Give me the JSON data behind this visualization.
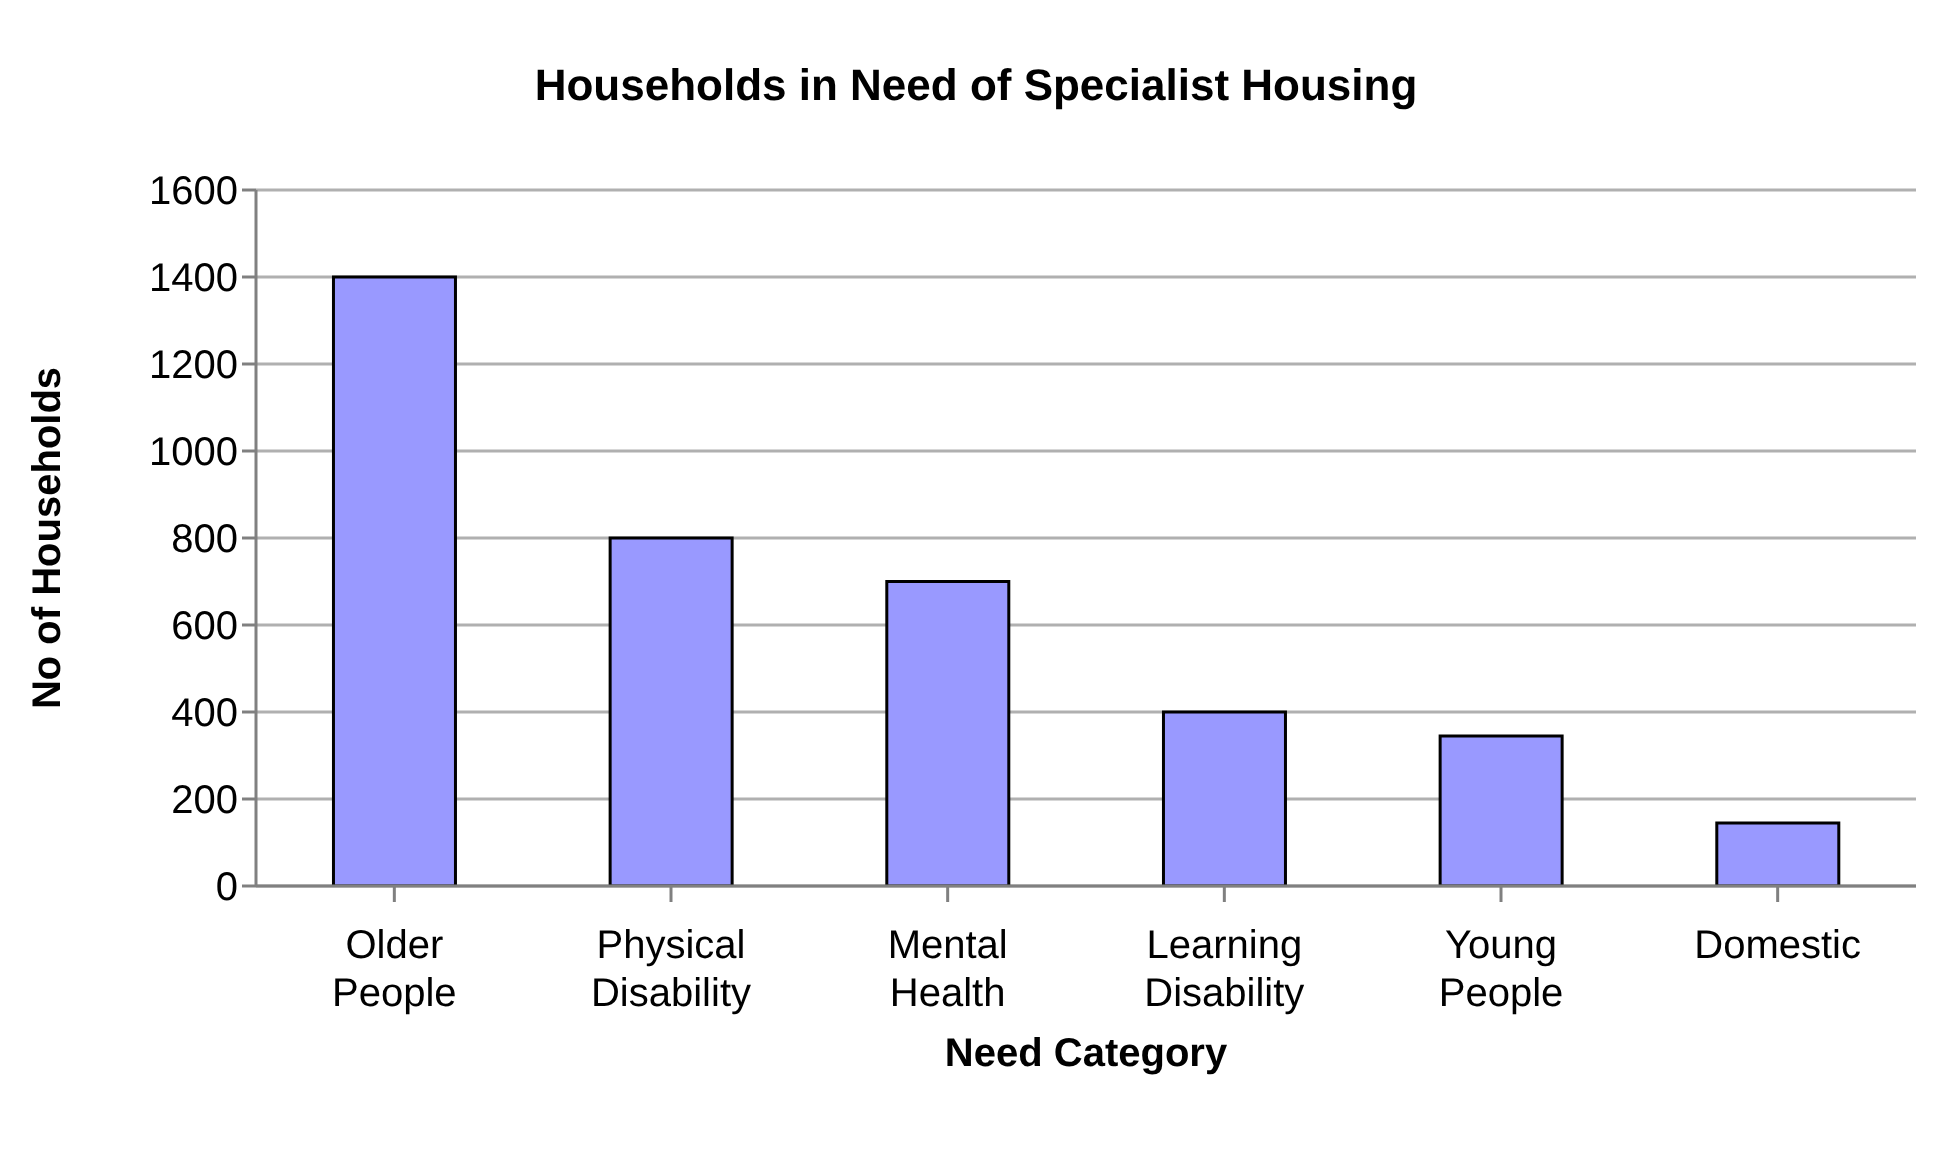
{
  "chart_data": {
    "type": "bar",
    "title": "Households in Need of Specialist Housing",
    "xlabel": "Need Category",
    "ylabel": "No of Households",
    "categories": [
      "Older People",
      "Physical Disability",
      "Mental Health",
      "Learning Disability",
      "Young People",
      "Domestic"
    ],
    "values": [
      1400,
      800,
      700,
      400,
      345,
      145
    ],
    "color": "#9999ff",
    "ylim": [
      0,
      1600
    ],
    "yticks": [
      0,
      200,
      400,
      600,
      800,
      1000,
      1200,
      1400,
      1600
    ],
    "grid": "y",
    "legend": false
  }
}
